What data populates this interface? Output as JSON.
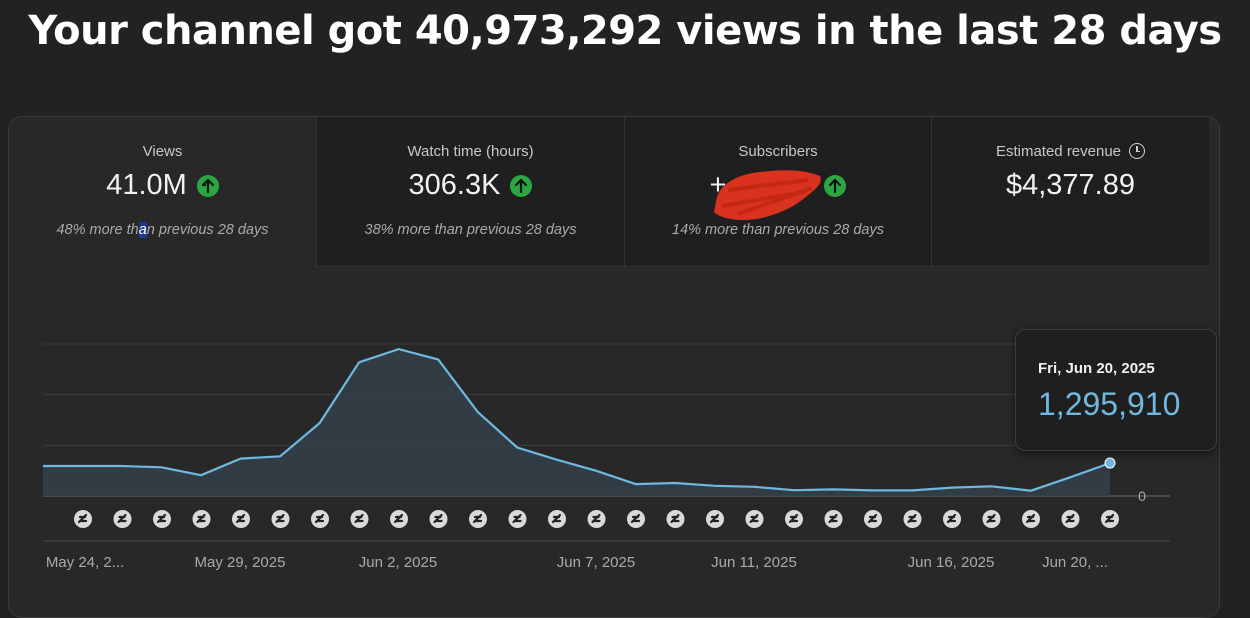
{
  "headline": "Your channel got 40,973,292 views in the last 28 days",
  "metrics": [
    {
      "label": "Views",
      "value": "41.0M",
      "sub_a": "48% more th",
      "sub_hl": "a",
      "sub_b": "n previous 28 days",
      "trend": "up"
    },
    {
      "label": "Watch time (hours)",
      "value": "306.3K",
      "sub": "38% more than previous 28 days",
      "trend": "up"
    },
    {
      "label": "Subscribers",
      "value": "+",
      "sub": "14% more than previous 28 days",
      "trend": "up"
    },
    {
      "label": "Estimated revenue",
      "value": "$4,377.89",
      "icon": "clock-icon"
    }
  ],
  "tooltip": {
    "date": "Fri, Jun 20, 2025",
    "value": "1,295,910"
  },
  "colors": {
    "line": "#6fb8e0",
    "up": "#2ba640",
    "redaction": "#d9331f"
  },
  "chart_data": {
    "type": "area",
    "x": [
      "May 24, 2025",
      "May 25, 2025",
      "May 26, 2025",
      "May 27, 2025",
      "May 28, 2025",
      "May 29, 2025",
      "May 30, 2025",
      "May 31, 2025",
      "Jun 1, 2025",
      "Jun 2, 2025",
      "Jun 3, 2025",
      "Jun 4, 2025",
      "Jun 5, 2025",
      "Jun 6, 2025",
      "Jun 7, 2025",
      "Jun 8, 2025",
      "Jun 9, 2025",
      "Jun 10, 2025",
      "Jun 11, 2025",
      "Jun 12, 2025",
      "Jun 13, 2025",
      "Jun 14, 2025",
      "Jun 15, 2025",
      "Jun 16, 2025",
      "Jun 17, 2025",
      "Jun 18, 2025",
      "Jun 19, 2025",
      "Jun 20, 2025"
    ],
    "values": [
      1180000,
      1180000,
      1180000,
      1130000,
      820000,
      1470000,
      1560000,
      2870000,
      5260000,
      5780000,
      5370000,
      3310000,
      1910000,
      1430000,
      990000,
      470000,
      510000,
      400000,
      360000,
      230000,
      260000,
      220000,
      220000,
      330000,
      380000,
      210000,
      740000,
      1295910
    ],
    "tick_labels": [
      "May 24, 2...",
      "May 29, 2025",
      "Jun 2, 2025",
      "Jun 7, 2025",
      "Jun 11, 2025",
      "Jun 16, 2025",
      "Jun 20, ..."
    ],
    "tick_indices": [
      0,
      5,
      9,
      14,
      18,
      23,
      27
    ],
    "y_labels": [
      "0"
    ],
    "ylim": [
      0,
      5980000
    ],
    "grid": true,
    "selected_index": 27
  }
}
